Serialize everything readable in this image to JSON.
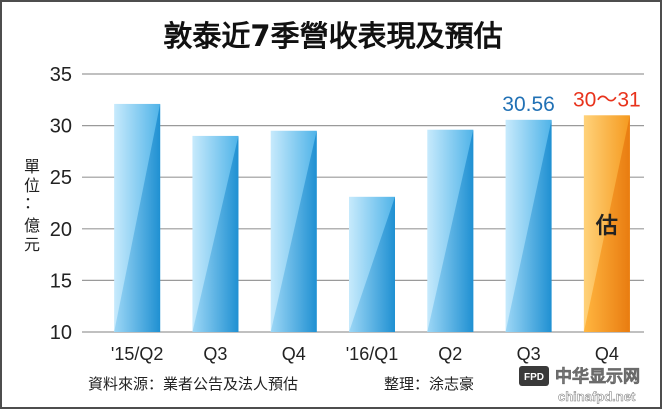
{
  "chart_data": {
    "type": "bar",
    "title": "敦泰近7季營收表現及預估",
    "ylabel": "單位：億元",
    "ylim": [
      10,
      35
    ],
    "yticks": [
      10,
      15,
      20,
      25,
      30,
      35
    ],
    "grid": true,
    "categories": [
      "'15/Q2",
      "Q3",
      "Q4",
      "'16/Q1",
      "Q2",
      "Q3",
      "Q4"
    ],
    "values": [
      32.1,
      29.0,
      29.5,
      23.1,
      29.6,
      30.56,
      31.0
    ],
    "data_labels": [
      "",
      "",
      "",
      "",
      "",
      "30.56",
      "30～31"
    ],
    "estimate_label": "估",
    "colors": {
      "bar_light": "#bfe6fb",
      "bar_dark": "#2c9fdc",
      "estimate_light": "#ffc04d",
      "estimate_dark": "#f08a16",
      "actual_label": "#2171b5",
      "estimate_label_color": "#e8331c"
    }
  },
  "footer": {
    "source": "資料來源：業者公告及法人預估",
    "editor": "整理：涂志豪"
  },
  "watermark": {
    "cn": "中华显示网",
    "url": "chinafpd.net",
    "badge": "FPD"
  }
}
